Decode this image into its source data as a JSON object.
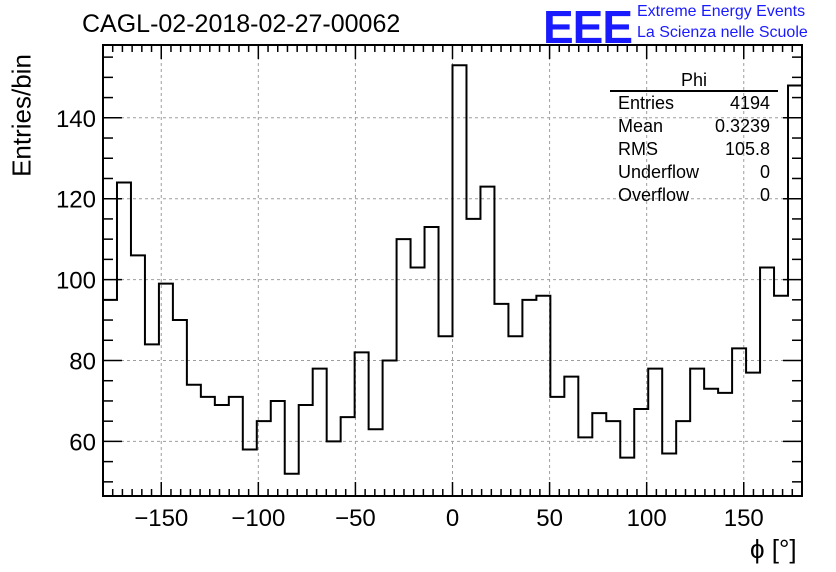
{
  "header": {
    "title": "CAGL-02-2018-02-27-00062",
    "logo_text": "EEE",
    "logo_line1": "Extreme Energy Events",
    "logo_line2": "La Scienza nelle Scuole"
  },
  "stats_box": {
    "title": "Phi",
    "rows": [
      {
        "label": "Entries",
        "value": "4194"
      },
      {
        "label": "Mean",
        "value": "0.3239"
      },
      {
        "label": "RMS",
        "value": "105.8"
      },
      {
        "label": "Underflow",
        "value": "0"
      },
      {
        "label": "Overflow",
        "value": "0"
      }
    ]
  },
  "colors": {
    "logo": "#1a1aff",
    "line": "#000000",
    "grid": "#9e9e9e"
  },
  "chart_data": {
    "type": "histogram",
    "title": "CAGL-02-2018-02-27-00062",
    "xlabel": "ϕ [°]",
    "ylabel": "Entries/bin",
    "xlim": [
      -180,
      180
    ],
    "ylim": [
      46.5,
      158
    ],
    "bin_width": 7.2,
    "grid": true,
    "xticks": [
      -150,
      -100,
      -50,
      0,
      50,
      100,
      150
    ],
    "xtick_labels": [
      "−150",
      "−100",
      "−50",
      "0",
      "50",
      "100",
      "150"
    ],
    "yticks": [
      60,
      80,
      100,
      120,
      140
    ],
    "ytick_labels": [
      "60",
      "80",
      "100",
      "120",
      "140"
    ],
    "values": [
      95,
      124,
      106,
      84,
      99,
      90,
      74,
      71,
      69,
      71,
      58,
      65,
      70,
      52,
      69,
      78,
      60,
      66,
      82,
      63,
      80,
      110,
      103,
      113,
      86,
      153,
      115,
      123,
      94,
      86,
      95,
      96,
      71,
      76,
      61,
      67,
      65,
      56,
      68,
      78,
      57,
      65,
      78,
      73,
      72,
      83,
      77,
      103,
      96,
      148
    ]
  }
}
